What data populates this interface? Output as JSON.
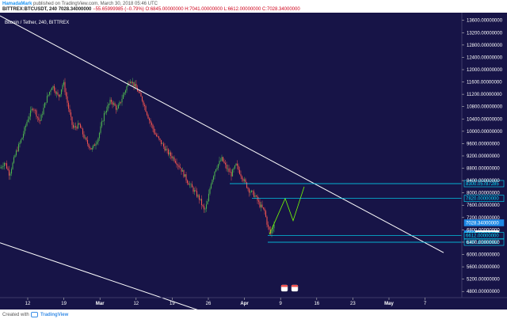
{
  "header": {
    "author": "HamadaMark",
    "published_text": "published on TradingView.com, March 30, 2018 05:46 UTC",
    "symbol": "BITTREX:BTCUSDT, 240",
    "last_price": "7028.34000000",
    "change": "−55.65999985 (−0.79%)",
    "open": "O:6845.00000000",
    "high": "H:7041.00000000",
    "low": "L:6612.00000000",
    "close": "C:7028.34000000"
  },
  "footer": {
    "created_with": "Created with",
    "brand": "TradingView"
  },
  "chart_data": {
    "type": "candlestick",
    "title": "Bitcoin / Tether, 240, BITTREX",
    "colors": {
      "background": "#171447",
      "up": "#4caf50",
      "down": "#ef5350",
      "trendline": "#ffffff",
      "level": "#00e5ff",
      "projection": "#76ff03"
    },
    "x_ticks": [
      "12",
      "19",
      "Mar",
      "12",
      "19",
      "26",
      "Apr",
      "9",
      "16",
      "23",
      "May",
      "7"
    ],
    "y_ticks": [
      "13600.00000000",
      "13200.00000000",
      "12800.00000000",
      "12400.00000000",
      "12000.00000000",
      "11600.00000000",
      "11200.00000000",
      "10800.00000000",
      "10400.00000000",
      "10000.00000000",
      "9600.00000000",
      "9200.00000000",
      "8800.00000000",
      "8400.00000000",
      "8000.00000000",
      "7600.00000000",
      "7200.00000000",
      "6800.00000000",
      "6400.00000000",
      "6000.00000000",
      "5600.00000000",
      "5200.00000000",
      "4800.00000000"
    ],
    "y_range": [
      4600,
      13850
    ],
    "price_path": [
      [
        0,
        8800
      ],
      [
        6,
        9000
      ],
      [
        12,
        8600
      ],
      [
        20,
        9300
      ],
      [
        28,
        9800
      ],
      [
        35,
        10400
      ],
      [
        42,
        10800
      ],
      [
        50,
        10300
      ],
      [
        58,
        11000
      ],
      [
        66,
        11500
      ],
      [
        74,
        11100
      ],
      [
        80,
        11600
      ],
      [
        86,
        10800
      ],
      [
        92,
        10100
      ],
      [
        100,
        10200
      ],
      [
        108,
        9700
      ],
      [
        116,
        9400
      ],
      [
        124,
        9800
      ],
      [
        132,
        10600
      ],
      [
        140,
        11000
      ],
      [
        148,
        10700
      ],
      [
        156,
        11200
      ],
      [
        164,
        11700
      ],
      [
        172,
        11400
      ],
      [
        180,
        11000
      ],
      [
        188,
        10400
      ],
      [
        196,
        9900
      ],
      [
        204,
        9600
      ],
      [
        212,
        9300
      ],
      [
        220,
        9100
      ],
      [
        228,
        8800
      ],
      [
        236,
        8400
      ],
      [
        244,
        8100
      ],
      [
        252,
        7800
      ],
      [
        258,
        7400
      ],
      [
        262,
        7700
      ],
      [
        266,
        8300
      ],
      [
        272,
        8800
      ],
      [
        280,
        9100
      ],
      [
        286,
        8800
      ],
      [
        292,
        8600
      ],
      [
        298,
        8900
      ],
      [
        306,
        8500
      ],
      [
        314,
        8100
      ],
      [
        322,
        7900
      ],
      [
        328,
        7600
      ],
      [
        334,
        7400
      ],
      [
        338,
        6900
      ],
      [
        342,
        6650
      ],
      [
        346,
        7028
      ]
    ],
    "price_labels": [
      {
        "text": "8300.05787285",
        "value": 8300.05787285
      },
      {
        "text": "7820.00000000",
        "value": 7820
      },
      {
        "text": "7028.34000000",
        "value": 7028.34
      },
      {
        "text": "6800",
        "value": 6800
      },
      {
        "text": "02:13:50",
        "value": 6800
      },
      {
        "text": "6612.00000000",
        "value": 6612
      },
      {
        "text": "6397.83808652",
        "value": 6397.83808652
      }
    ],
    "trendlines": [
      {
        "from": [
          0,
          13750
        ],
        "to": [
          560,
          6060
        ]
      },
      {
        "from": [
          0,
          6380
        ],
        "to": [
          330,
          3500
        ]
      }
    ],
    "projection": [
      [
        340,
        6650
      ],
      [
        360,
        7820
      ],
      [
        370,
        7100
      ],
      [
        384,
        8200
      ]
    ],
    "icons": [
      "calendar-icon",
      "calendar-icon"
    ]
  }
}
